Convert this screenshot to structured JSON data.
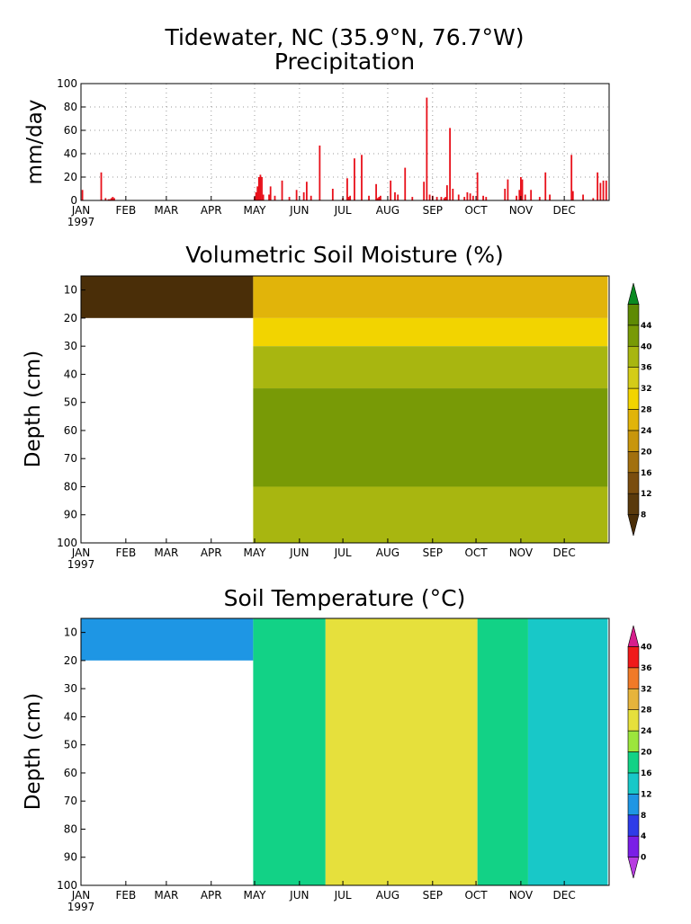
{
  "header": {
    "site_title": "Tidewater, NC  (35.9°N, 76.7°W)"
  },
  "axis_common": {
    "months": [
      "JAN",
      "FEB",
      "MAR",
      "APR",
      "MAY",
      "JUN",
      "JUL",
      "AUG",
      "SEP",
      "OCT",
      "NOV",
      "DEC"
    ],
    "year": "1997"
  },
  "colors": {
    "precip_bar": "#e8101a",
    "frame": "#000000",
    "grid": "#9a9a9a"
  },
  "chart_data": [
    {
      "type": "bar",
      "title": "Precipitation",
      "xlabel": "",
      "ylabel": "mm/day",
      "ylim": [
        0,
        100
      ],
      "yticks": [
        0,
        20,
        40,
        60,
        80,
        100
      ],
      "xlim_day": [
        1,
        365
      ],
      "x_unit": "day of year 1997",
      "grid": true,
      "series": [
        {
          "x": [
            2,
            15,
            18,
            20,
            21,
            22,
            23,
            24,
            121,
            122,
            123,
            124,
            125,
            126,
            127,
            131,
            132,
            135,
            140,
            145,
            150,
            155,
            157,
            160,
            166,
            175,
            182,
            185,
            186,
            187,
            190,
            195,
            200,
            205,
            206,
            207,
            208,
            215,
            218,
            220,
            225,
            230,
            238,
            240,
            242,
            244,
            247,
            250,
            252,
            253,
            254,
            256,
            258,
            262,
            266,
            268,
            270,
            272,
            275,
            279,
            281,
            294,
            296,
            302,
            304,
            305,
            306,
            308,
            312,
            318,
            322,
            325,
            340,
            341,
            348,
            355,
            358,
            360,
            362,
            364
          ],
          "values": [
            9,
            24,
            2,
            1,
            1,
            2,
            3,
            2,
            3,
            7,
            12,
            20,
            22,
            20,
            5,
            5,
            12,
            4,
            17,
            3,
            9,
            7,
            16,
            4,
            47,
            10,
            2,
            19,
            3,
            4,
            36,
            39,
            4,
            14,
            2,
            3,
            4,
            17,
            7,
            5,
            28,
            3,
            16,
            88,
            5,
            4,
            3,
            3,
            2,
            3,
            13,
            62,
            10,
            5,
            3,
            7,
            6,
            4,
            24,
            4,
            3,
            10,
            18,
            4,
            9,
            20,
            18,
            5,
            9,
            3,
            24,
            5,
            39,
            8,
            5,
            2,
            24,
            15,
            17,
            17
          ]
        }
      ]
    },
    {
      "type": "heatmap",
      "title": "Volumetric Soil Moisture (%)",
      "xlabel": "",
      "ylabel": "Depth (cm)",
      "ylim": [
        100,
        5
      ],
      "yticks": [
        10,
        20,
        30,
        40,
        50,
        60,
        70,
        80,
        90,
        100
      ],
      "colorbar_ticks": [
        8,
        12,
        16,
        20,
        24,
        28,
        32,
        36,
        40,
        44
      ],
      "colorbar_colors": [
        "#4a2e08",
        "#5a3a0c",
        "#7a4d0e",
        "#a2700e",
        "#c8960c",
        "#e1b40a",
        "#f2d400",
        "#d4cc18",
        "#a8b610",
        "#789a06",
        "#5e8a04",
        "#0a8a22"
      ],
      "regions": [
        {
          "x": [
            1,
            120
          ],
          "depth": [
            5,
            20
          ],
          "value": 6
        },
        {
          "x": [
            1,
            120
          ],
          "depth": [
            20,
            100
          ],
          "value": "missing"
        },
        {
          "x": [
            120,
            365
          ],
          "depth": [
            5,
            20
          ],
          "value": 24
        },
        {
          "x": [
            120,
            365
          ],
          "depth": [
            20,
            30
          ],
          "value": 30
        },
        {
          "x": [
            120,
            365
          ],
          "depth": [
            30,
            45
          ],
          "value": 36
        },
        {
          "x": [
            120,
            365
          ],
          "depth": [
            45,
            80
          ],
          "value": 42
        },
        {
          "x": [
            120,
            365
          ],
          "depth": [
            80,
            100
          ],
          "value": 38
        }
      ]
    },
    {
      "type": "heatmap",
      "title": "Soil Temperature (°C)",
      "xlabel": "",
      "ylabel": "Depth (cm)",
      "ylim": [
        100,
        5
      ],
      "yticks": [
        10,
        20,
        30,
        40,
        50,
        60,
        70,
        80,
        90,
        100
      ],
      "colorbar_ticks": [
        0,
        4,
        8,
        12,
        16,
        20,
        24,
        28,
        32,
        36,
        40
      ],
      "colorbar_colors": [
        "#b73ce0",
        "#7a1ee6",
        "#2e3ce8",
        "#1e96e4",
        "#18c8c8",
        "#12d286",
        "#9ce63c",
        "#e6e03c",
        "#e6b43c",
        "#f07a28",
        "#f01a1a",
        "#d61e8c"
      ],
      "regions": [
        {
          "x": [
            1,
            120
          ],
          "depth": [
            5,
            20
          ],
          "value": 10
        },
        {
          "x": [
            1,
            120
          ],
          "depth": [
            20,
            100
          ],
          "value": "missing"
        },
        {
          "x": [
            120,
            170
          ],
          "depth": [
            5,
            100
          ],
          "value": 19
        },
        {
          "x": [
            170,
            275
          ],
          "depth": [
            5,
            100
          ],
          "value": 24
        },
        {
          "x": [
            200,
            265
          ],
          "depth": [
            5,
            30
          ],
          "value": 26
        },
        {
          "x": [
            275,
            310
          ],
          "depth": [
            5,
            100
          ],
          "value": 19
        },
        {
          "x": [
            310,
            365
          ],
          "depth": [
            5,
            100
          ],
          "value": 14
        }
      ]
    }
  ]
}
